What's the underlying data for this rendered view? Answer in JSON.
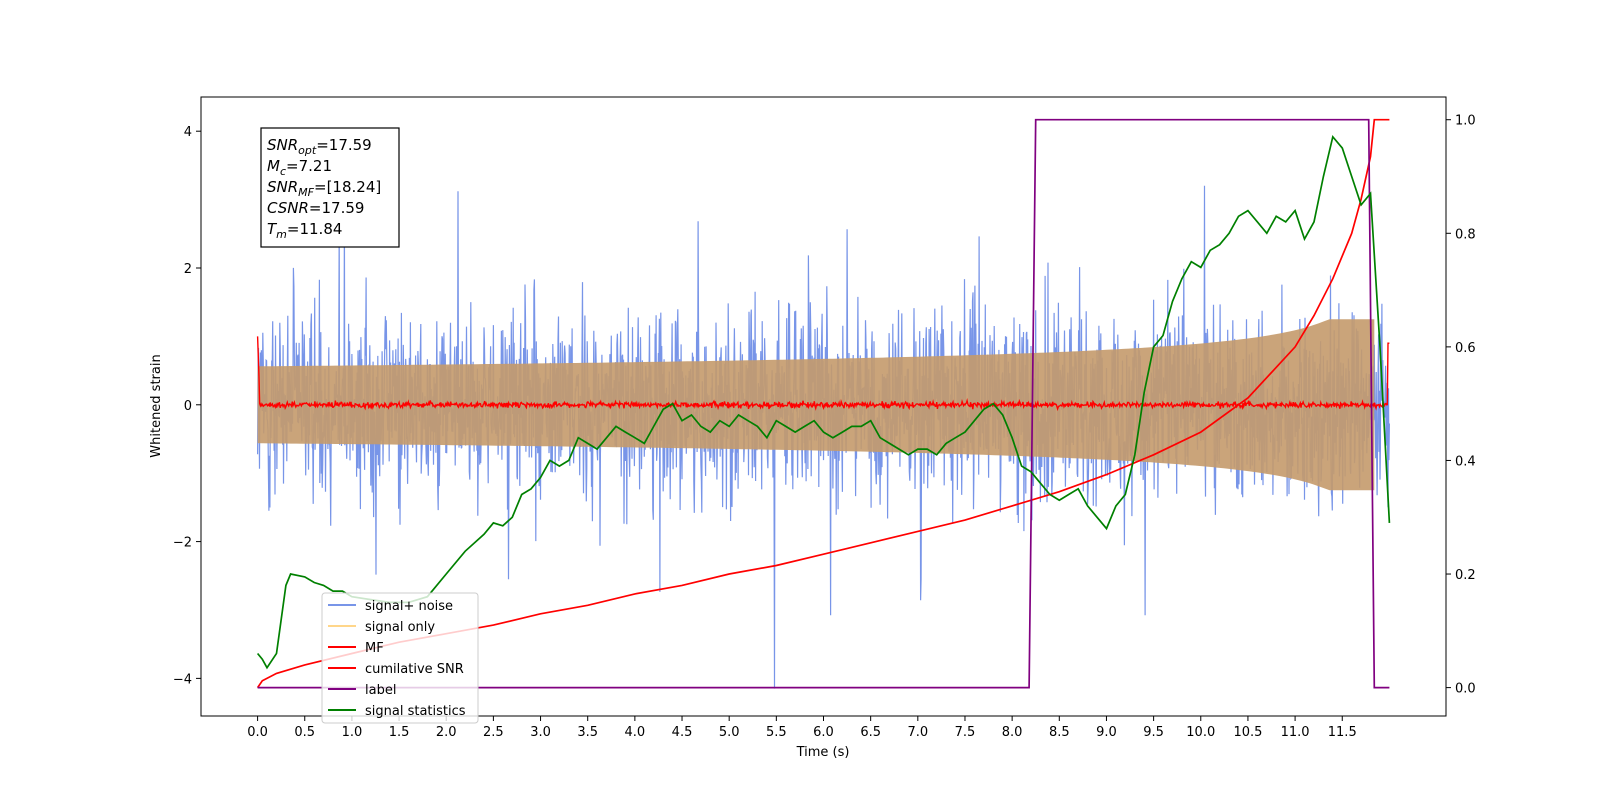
{
  "chart_data": {
    "type": "line",
    "xlabel": "Time (s)",
    "ylabel": "Whitened strain",
    "xlim": [
      -0.6,
      12.6
    ],
    "ylim": [
      -4.55,
      4.5
    ],
    "y2lim": [
      -0.05,
      1.04
    ],
    "xticks": [
      "0.0",
      "0.5",
      "1.0",
      "1.5",
      "2.0",
      "2.5",
      "3.0",
      "3.5",
      "4.0",
      "4.5",
      "5.0",
      "5.5",
      "6.0",
      "6.5",
      "7.0",
      "7.5",
      "8.0",
      "8.5",
      "9.0",
      "9.5",
      "10.0",
      "10.5",
      "11.0",
      "11.5"
    ],
    "yticks": [
      "4",
      "2",
      "0",
      "−2",
      "−4"
    ],
    "y2ticks": [
      "1.0",
      "0.8",
      "0.6",
      "0.4",
      "0.2",
      "0.0"
    ],
    "grid": false,
    "legend_position": "lower-left",
    "info_box": [
      {
        "sym": "SNR",
        "sub": "opt",
        "eq": "=17.59"
      },
      {
        "sym": "M",
        "sub": "c",
        "eq": "=7.21"
      },
      {
        "sym": "SNR",
        "sub": "MF",
        "eq": "=[18.24]"
      },
      {
        "sym": "CSNR",
        "sub": "",
        "eq": "=17.59"
      },
      {
        "sym": "T",
        "sub": "m",
        "eq": "=11.84"
      }
    ],
    "series": [
      {
        "name": "signal+ noise",
        "color": "#7895e8",
        "axis": "left",
        "style": "noise",
        "t_range": [
          0,
          12.0
        ],
        "amplitude_envelope": [
          2.4,
          3.2
        ]
      },
      {
        "name": "signal only",
        "color": "#ffd68a",
        "axis": "left",
        "style": "chirp",
        "t_range": [
          0,
          11.84
        ],
        "amplitude_at_end": 1.25
      },
      {
        "name": "MF",
        "color": "#ff0000",
        "axis": "left",
        "style": "mf",
        "t_range": [
          0,
          12.0
        ]
      },
      {
        "name": "cumilative SNR",
        "color": "#ff0000",
        "axis": "right",
        "x": [
          0.0,
          0.05,
          0.2,
          0.5,
          1,
          1.5,
          2,
          2.5,
          3,
          3.5,
          4,
          4.5,
          5,
          5.5,
          6,
          6.5,
          7,
          7.5,
          8,
          8.5,
          9,
          9.5,
          10,
          10.5,
          11,
          11.2,
          11.4,
          11.6,
          11.7,
          11.8,
          11.84,
          12.0
        ],
        "y": [
          0.0,
          0.012,
          0.025,
          0.04,
          0.06,
          0.08,
          0.095,
          0.11,
          0.13,
          0.145,
          0.165,
          0.18,
          0.2,
          0.215,
          0.235,
          0.255,
          0.275,
          0.295,
          0.32,
          0.345,
          0.375,
          0.41,
          0.45,
          0.51,
          0.6,
          0.655,
          0.72,
          0.8,
          0.86,
          0.935,
          1.0,
          1.0
        ]
      },
      {
        "name": "label",
        "color": "#800080",
        "axis": "right",
        "x": [
          0.0,
          8.18,
          8.25,
          11.78,
          11.84,
          12.0
        ],
        "y": [
          0.0,
          0.0,
          1.0,
          1.0,
          0.0,
          0.0
        ]
      },
      {
        "name": "signal statistics",
        "color": "#008000",
        "axis": "right",
        "x": [
          0.0,
          0.05,
          0.1,
          0.2,
          0.3,
          0.35,
          0.5,
          0.6,
          0.7,
          0.8,
          0.9,
          1.0,
          1.2,
          1.4,
          1.6,
          1.8,
          2.0,
          2.2,
          2.4,
          2.5,
          2.6,
          2.7,
          2.8,
          2.9,
          3.0,
          3.1,
          3.2,
          3.3,
          3.4,
          3.5,
          3.6,
          3.7,
          3.8,
          3.9,
          4.0,
          4.1,
          4.2,
          4.3,
          4.4,
          4.5,
          4.6,
          4.7,
          4.8,
          4.9,
          5.0,
          5.1,
          5.2,
          5.3,
          5.4,
          5.5,
          5.6,
          5.7,
          5.8,
          5.9,
          6.0,
          6.1,
          6.2,
          6.3,
          6.4,
          6.5,
          6.6,
          6.7,
          6.8,
          6.9,
          7.0,
          7.1,
          7.2,
          7.3,
          7.4,
          7.5,
          7.6,
          7.7,
          7.8,
          7.9,
          8.0,
          8.1,
          8.2,
          8.3,
          8.4,
          8.5,
          8.6,
          8.7,
          8.8,
          8.9,
          9.0,
          9.1,
          9.2,
          9.3,
          9.4,
          9.5,
          9.6,
          9.7,
          9.8,
          9.9,
          10.0,
          10.1,
          10.2,
          10.3,
          10.4,
          10.5,
          10.6,
          10.7,
          10.8,
          10.9,
          11.0,
          11.1,
          11.2,
          11.3,
          11.4,
          11.5,
          11.6,
          11.7,
          11.8,
          11.9,
          12.0
        ],
        "y": [
          0.06,
          0.05,
          0.035,
          0.06,
          0.18,
          0.2,
          0.195,
          0.185,
          0.18,
          0.17,
          0.17,
          0.16,
          0.155,
          0.15,
          0.15,
          0.16,
          0.2,
          0.24,
          0.27,
          0.29,
          0.285,
          0.3,
          0.34,
          0.35,
          0.37,
          0.4,
          0.39,
          0.4,
          0.44,
          0.43,
          0.42,
          0.44,
          0.46,
          0.45,
          0.44,
          0.43,
          0.46,
          0.49,
          0.5,
          0.47,
          0.48,
          0.46,
          0.45,
          0.47,
          0.46,
          0.48,
          0.47,
          0.46,
          0.44,
          0.47,
          0.46,
          0.45,
          0.46,
          0.47,
          0.45,
          0.44,
          0.45,
          0.46,
          0.46,
          0.47,
          0.44,
          0.43,
          0.42,
          0.41,
          0.42,
          0.42,
          0.41,
          0.43,
          0.44,
          0.45,
          0.47,
          0.49,
          0.5,
          0.48,
          0.44,
          0.39,
          0.38,
          0.36,
          0.34,
          0.33,
          0.34,
          0.35,
          0.32,
          0.3,
          0.28,
          0.32,
          0.34,
          0.41,
          0.52,
          0.6,
          0.62,
          0.68,
          0.72,
          0.75,
          0.74,
          0.77,
          0.78,
          0.8,
          0.83,
          0.84,
          0.82,
          0.8,
          0.83,
          0.82,
          0.84,
          0.79,
          0.82,
          0.9,
          0.97,
          0.95,
          0.9,
          0.85,
          0.87,
          0.6,
          0.29
        ]
      }
    ]
  }
}
